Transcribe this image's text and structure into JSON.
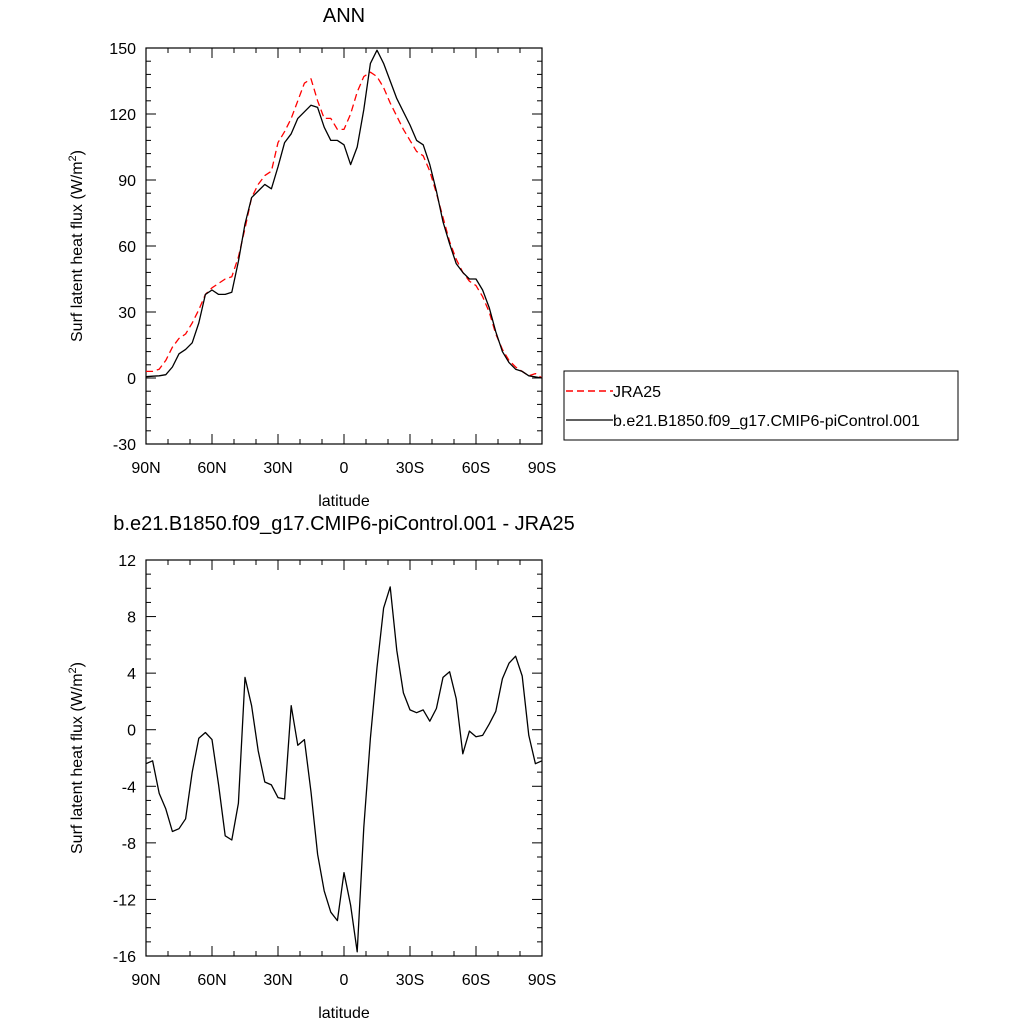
{
  "chart_data": [
    {
      "type": "line",
      "title": "ANN",
      "xlabel": "latitude",
      "ylabel": "Surf latent heat flux (W/m²)",
      "ylabel_main": "Surf latent heat flux (W/m",
      "ylabel_sup": "2",
      "ylabel_tail": ")",
      "xlim": [
        90,
        -90
      ],
      "ylim": [
        -30,
        150
      ],
      "x_ticks": [
        {
          "value": 90,
          "label": "90N"
        },
        {
          "value": 60,
          "label": "60N"
        },
        {
          "value": 30,
          "label": "30N"
        },
        {
          "value": 0,
          "label": "0"
        },
        {
          "value": -30,
          "label": "30S"
        },
        {
          "value": -60,
          "label": "60S"
        },
        {
          "value": -90,
          "label": "90S"
        }
      ],
      "y_ticks": [
        {
          "value": 150,
          "label": "150"
        },
        {
          "value": 120,
          "label": "120"
        },
        {
          "value": 90,
          "label": "90"
        },
        {
          "value": 60,
          "label": "60"
        },
        {
          "value": 30,
          "label": "30"
        },
        {
          "value": 0,
          "label": "0"
        },
        {
          "value": -30,
          "label": "-30"
        }
      ],
      "legend": {
        "placement": "right",
        "entries": [
          "JRA25",
          "b.e21.B1850.f09_g17.CMIP6-piControl.001"
        ]
      },
      "series": [
        {
          "name": "JRA25",
          "color": "#ff0000",
          "dash": "dashed",
          "points": [
            [
              90,
              3
            ],
            [
              87,
              3
            ],
            [
              84,
              4
            ],
            [
              81,
              8
            ],
            [
              78,
              14
            ],
            [
              75,
              18
            ],
            [
              72,
              20
            ],
            [
              69,
              25
            ],
            [
              66,
              31
            ],
            [
              63,
              38
            ],
            [
              60,
              41
            ],
            [
              57,
              43
            ],
            [
              54,
              45
            ],
            [
              51,
              46
            ],
            [
              48,
              55
            ],
            [
              45,
              68
            ],
            [
              42,
              82
            ],
            [
              39,
              88
            ],
            [
              36,
              92
            ],
            [
              33,
              94
            ],
            [
              30,
              107
            ],
            [
              27,
              112
            ],
            [
              24,
              118
            ],
            [
              21,
              126
            ],
            [
              18,
              134
            ],
            [
              15,
              136
            ],
            [
              12,
              126
            ],
            [
              9,
              118
            ],
            [
              6,
              118
            ],
            [
              3,
              113
            ],
            [
              0,
              113
            ],
            [
              -3,
              120
            ],
            [
              -6,
              130
            ],
            [
              -9,
              137
            ],
            [
              -12,
              139
            ],
            [
              -15,
              137
            ],
            [
              -18,
              132
            ],
            [
              -21,
              125
            ],
            [
              -24,
              119
            ],
            [
              -27,
              113
            ],
            [
              -30,
              108
            ],
            [
              -33,
              103
            ],
            [
              -36,
              101
            ],
            [
              -39,
              94
            ],
            [
              -42,
              84
            ],
            [
              -45,
              73
            ],
            [
              -48,
              62
            ],
            [
              -51,
              54
            ],
            [
              -54,
              48
            ],
            [
              -57,
              44
            ],
            [
              -60,
              42
            ],
            [
              -63,
              37
            ],
            [
              -66,
              30
            ],
            [
              -69,
              20
            ],
            [
              -72,
              13
            ],
            [
              -75,
              8
            ],
            [
              -78,
              5
            ],
            [
              -81,
              3
            ],
            [
              -84,
              1
            ],
            [
              -87,
              2
            ],
            [
              -90,
              0
            ]
          ]
        },
        {
          "name": "b.e21.B1850.f09_g17.CMIP6-piControl.001",
          "color": "#000000",
          "dash": "solid",
          "points": [
            [
              90,
              0.6
            ],
            [
              87,
              0.8
            ],
            [
              84,
              1
            ],
            [
              81,
              1.5
            ],
            [
              78,
              5
            ],
            [
              75,
              11
            ],
            [
              72,
              13
            ],
            [
              69,
              16
            ],
            [
              66,
              25
            ],
            [
              63,
              38
            ],
            [
              60,
              40
            ],
            [
              57,
              38
            ],
            [
              54,
              38
            ],
            [
              51,
              39
            ],
            [
              48,
              53
            ],
            [
              45,
              70
            ],
            [
              42,
              82
            ],
            [
              39,
              85
            ],
            [
              36,
              88
            ],
            [
              33,
              86
            ],
            [
              30,
              96
            ],
            [
              27,
              107
            ],
            [
              24,
              111
            ],
            [
              21,
              118
            ],
            [
              18,
              121
            ],
            [
              15,
              124
            ],
            [
              12,
              123
            ],
            [
              9,
              114
            ],
            [
              6,
              108
            ],
            [
              3,
              108
            ],
            [
              0,
              106
            ],
            [
              -3,
              97
            ],
            [
              -6,
              105
            ],
            [
              -9,
              122
            ],
            [
              -12,
              143
            ],
            [
              -15,
              149
            ],
            [
              -18,
              143
            ],
            [
              -21,
              135
            ],
            [
              -24,
              127
            ],
            [
              -27,
              121
            ],
            [
              -30,
              115
            ],
            [
              -33,
              108
            ],
            [
              -36,
              106
            ],
            [
              -39,
              97
            ],
            [
              -42,
              85
            ],
            [
              -45,
              71
            ],
            [
              -48,
              61
            ],
            [
              -51,
              52
            ],
            [
              -54,
              48
            ],
            [
              -57,
              45
            ],
            [
              -60,
              45
            ],
            [
              -63,
              40
            ],
            [
              -66,
              32
            ],
            [
              -69,
              21
            ],
            [
              -72,
              12
            ],
            [
              -75,
              7
            ],
            [
              -78,
              4
            ],
            [
              -81,
              3
            ],
            [
              -84,
              1
            ],
            [
              -87,
              0.5
            ],
            [
              -90,
              0
            ]
          ]
        }
      ]
    },
    {
      "type": "line",
      "title": "b.e21.B1850.f09_g17.CMIP6-piControl.001 - JRA25",
      "xlabel": "latitude",
      "ylabel": "Surf latent heat flux (W/m²)",
      "ylabel_main": "Surf latent heat flux (W/m",
      "ylabel_sup": "2",
      "ylabel_tail": ")",
      "xlim": [
        90,
        -90
      ],
      "ylim": [
        -16,
        12
      ],
      "x_ticks": [
        {
          "value": 90,
          "label": "90N"
        },
        {
          "value": 60,
          "label": "60N"
        },
        {
          "value": 30,
          "label": "30N"
        },
        {
          "value": 0,
          "label": "0"
        },
        {
          "value": -30,
          "label": "30S"
        },
        {
          "value": -60,
          "label": "60S"
        },
        {
          "value": -90,
          "label": "90S"
        }
      ],
      "y_ticks": [
        {
          "value": 12,
          "label": "12"
        },
        {
          "value": 8,
          "label": "8"
        },
        {
          "value": 4,
          "label": "4"
        },
        {
          "value": 0,
          "label": "0"
        },
        {
          "value": -4,
          "label": "-4"
        },
        {
          "value": -8,
          "label": "-8"
        },
        {
          "value": -12,
          "label": "-12"
        },
        {
          "value": -16,
          "label": "-16"
        }
      ],
      "series": [
        {
          "name": "",
          "color": "#000000",
          "dash": "solid",
          "points": [
            [
              90,
              -2.4
            ],
            [
              87,
              -2.2
            ],
            [
              84,
              -4.5
            ],
            [
              81,
              -5.6
            ],
            [
              78,
              -7.2
            ],
            [
              75,
              -7
            ],
            [
              72,
              -6.3
            ],
            [
              69,
              -3
            ],
            [
              66,
              -0.6
            ],
            [
              63,
              -0.2
            ],
            [
              60,
              -0.7
            ],
            [
              57,
              -3.9
            ],
            [
              54,
              -7.5
            ],
            [
              51,
              -7.8
            ],
            [
              48,
              -5.2
            ],
            [
              45,
              3.7
            ],
            [
              42,
              1.7
            ],
            [
              39,
              -1.5
            ],
            [
              36,
              -3.7
            ],
            [
              33,
              -3.9
            ],
            [
              30,
              -4.8
            ],
            [
              27,
              -4.9
            ],
            [
              24,
              1.7
            ],
            [
              21,
              -1.1
            ],
            [
              18,
              -0.7
            ],
            [
              15,
              -4.4
            ],
            [
              12,
              -8.8
            ],
            [
              9,
              -11.4
            ],
            [
              6,
              -12.9
            ],
            [
              3,
              -13.5
            ],
            [
              0,
              -10.1
            ],
            [
              -3,
              -12.4
            ],
            [
              -6,
              -15.7
            ],
            [
              -9,
              -6.9
            ],
            [
              -12,
              -0.6
            ],
            [
              -15,
              4.4
            ],
            [
              -18,
              8.6
            ],
            [
              -21,
              10.1
            ],
            [
              -24,
              5.6
            ],
            [
              -27,
              2.6
            ],
            [
              -30,
              1.4
            ],
            [
              -33,
              1.2
            ],
            [
              -36,
              1.4
            ],
            [
              -39,
              0.6
            ],
            [
              -42,
              1.5
            ],
            [
              -45,
              3.7
            ],
            [
              -48,
              4.1
            ],
            [
              -51,
              2.2
            ],
            [
              -54,
              -1.7
            ],
            [
              -57,
              -0.1
            ],
            [
              -60,
              -0.5
            ],
            [
              -63,
              -0.4
            ],
            [
              -66,
              0.4
            ],
            [
              -69,
              1.3
            ],
            [
              -72,
              3.6
            ],
            [
              -75,
              4.7
            ],
            [
              -78,
              5.2
            ],
            [
              -81,
              3.8
            ],
            [
              -84,
              -0.4
            ],
            [
              -87,
              -2.4
            ],
            [
              -90,
              -2.2
            ]
          ]
        }
      ]
    }
  ]
}
